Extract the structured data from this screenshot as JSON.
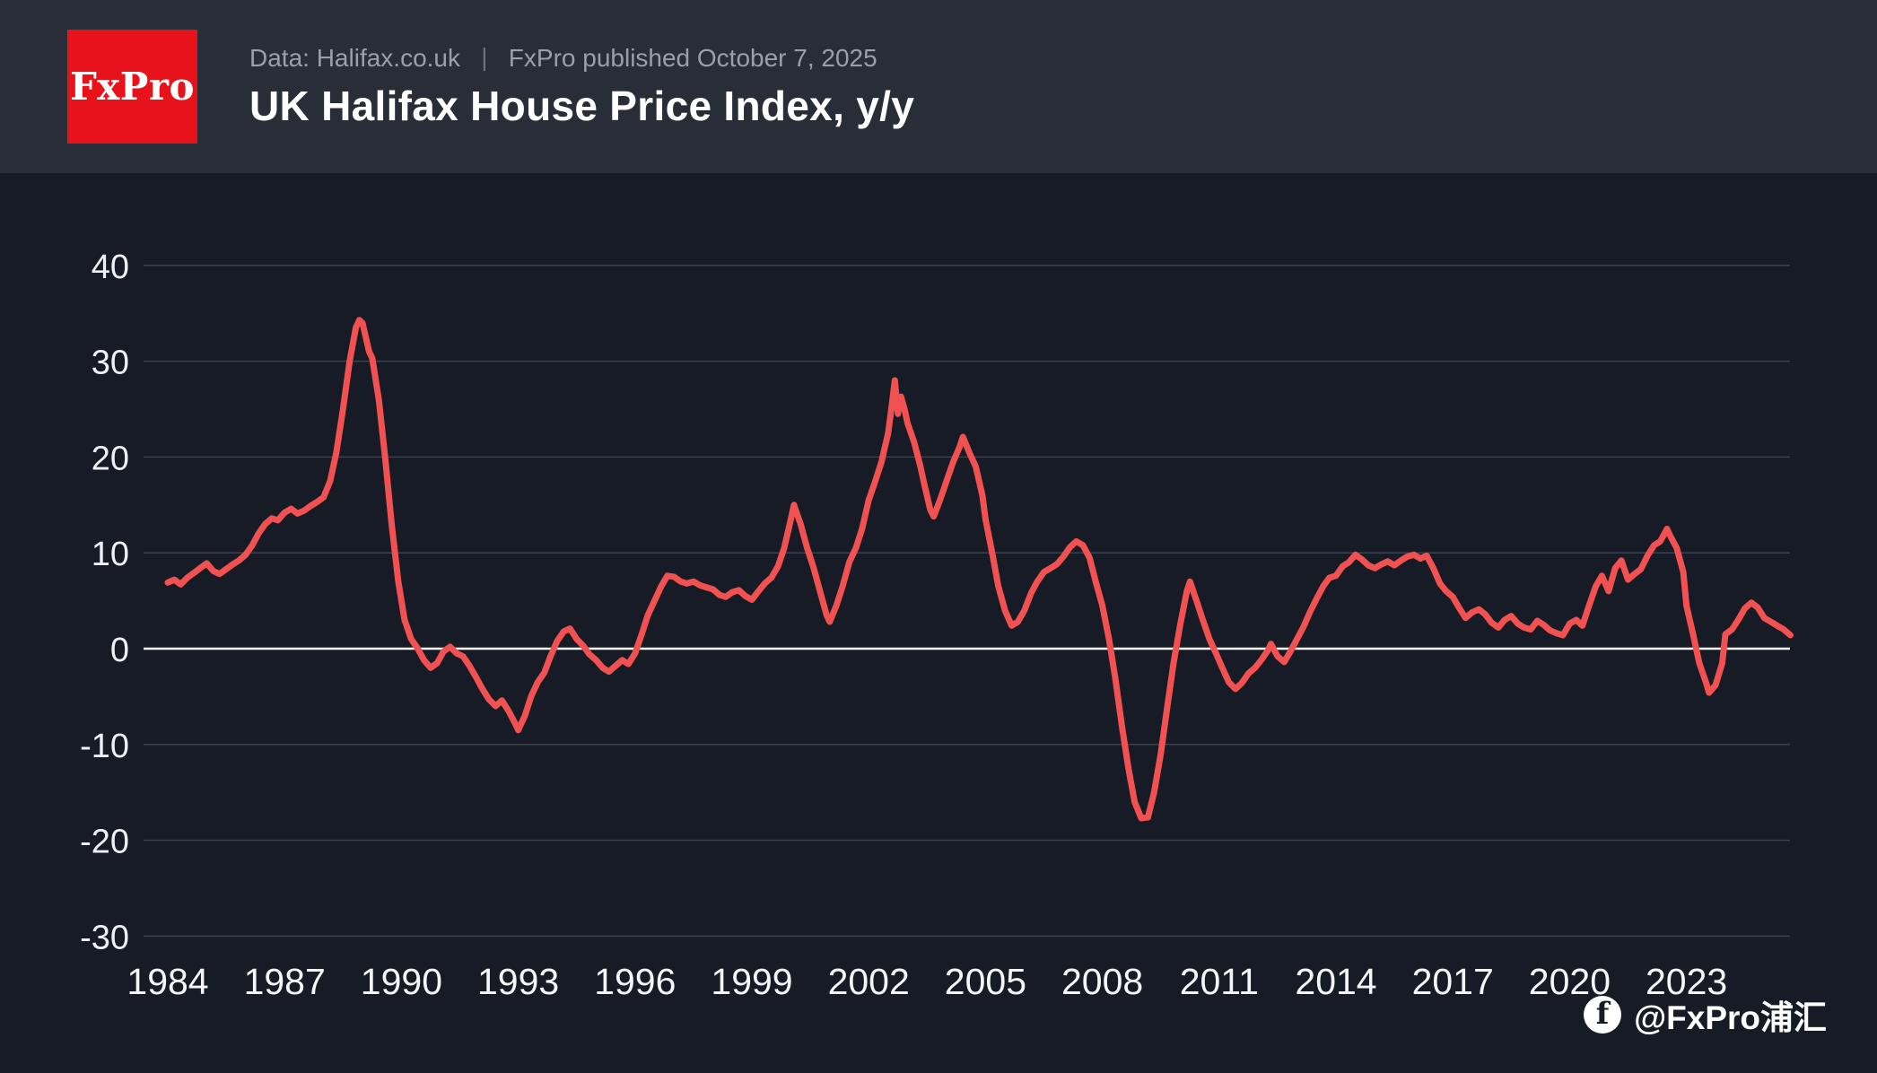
{
  "header": {
    "logo_text": "FxPro",
    "source": "Data: Halifax.co.uk",
    "published": "FxPro published October 7, 2025",
    "title": "UK Halifax House Price Index, y/y"
  },
  "watermark": {
    "icon": "facebook-icon",
    "icon_glyph": "f",
    "handle": "@FxPro浦汇"
  },
  "chart_data": {
    "type": "line",
    "title": "UK Halifax House Price Index, y/y",
    "xlabel": "",
    "ylabel": "",
    "xlim": [
      1984,
      2025.75
    ],
    "ylim": [
      -30,
      40
    ],
    "grid": "horizontal",
    "legend": "none",
    "x_ticks": [
      1984,
      1987,
      1990,
      1993,
      1996,
      1999,
      2002,
      2005,
      2008,
      2011,
      2014,
      2017,
      2020,
      2023
    ],
    "y_ticks": [
      40,
      30,
      20,
      10,
      0,
      -10,
      -20,
      -30
    ],
    "colors": {
      "line": "#f15151",
      "grid": "#3a4150",
      "zero_line": "#ffffff",
      "background": "#161b25",
      "header_background": "#282d38",
      "logo_red": "#e8121b",
      "tick_text": "#f5f6f8",
      "subtitle_text": "#98a0ab"
    },
    "series_name": "UK Halifax House Price Index y/y (%)",
    "points": [
      [
        1984.0,
        6.9
      ],
      [
        1984.17,
        7.2
      ],
      [
        1984.33,
        6.7
      ],
      [
        1984.5,
        7.4
      ],
      [
        1984.67,
        7.9
      ],
      [
        1984.83,
        8.4
      ],
      [
        1985.0,
        8.9
      ],
      [
        1985.17,
        8.1
      ],
      [
        1985.33,
        7.8
      ],
      [
        1985.5,
        8.3
      ],
      [
        1985.67,
        8.8
      ],
      [
        1985.83,
        9.2
      ],
      [
        1986.0,
        9.8
      ],
      [
        1986.17,
        10.8
      ],
      [
        1986.33,
        12.0
      ],
      [
        1986.5,
        13.0
      ],
      [
        1986.67,
        13.6
      ],
      [
        1986.83,
        13.4
      ],
      [
        1987.0,
        14.2
      ],
      [
        1987.17,
        14.6
      ],
      [
        1987.33,
        14.1
      ],
      [
        1987.5,
        14.4
      ],
      [
        1987.67,
        14.9
      ],
      [
        1987.83,
        15.3
      ],
      [
        1988.0,
        15.8
      ],
      [
        1988.17,
        17.5
      ],
      [
        1988.33,
        20.5
      ],
      [
        1988.5,
        25.0
      ],
      [
        1988.67,
        30.0
      ],
      [
        1988.83,
        33.5
      ],
      [
        1988.92,
        34.3
      ],
      [
        1989.0,
        34.0
      ],
      [
        1989.17,
        31.0
      ],
      [
        1989.25,
        30.3
      ],
      [
        1989.42,
        26.0
      ],
      [
        1989.58,
        20.0
      ],
      [
        1989.75,
        13.0
      ],
      [
        1989.92,
        7.0
      ],
      [
        1990.08,
        3.0
      ],
      [
        1990.25,
        1.0
      ],
      [
        1990.42,
        0.0
      ],
      [
        1990.58,
        -1.2
      ],
      [
        1990.75,
        -2.0
      ],
      [
        1990.92,
        -1.5
      ],
      [
        1991.08,
        -0.3
      ],
      [
        1991.25,
        0.2
      ],
      [
        1991.42,
        -0.5
      ],
      [
        1991.58,
        -0.8
      ],
      [
        1991.75,
        -1.8
      ],
      [
        1991.92,
        -3.0
      ],
      [
        1992.08,
        -4.2
      ],
      [
        1992.25,
        -5.3
      ],
      [
        1992.42,
        -6.0
      ],
      [
        1992.58,
        -5.4
      ],
      [
        1992.75,
        -6.5
      ],
      [
        1992.92,
        -7.8
      ],
      [
        1993.0,
        -8.5
      ],
      [
        1993.17,
        -7.0
      ],
      [
        1993.33,
        -5.0
      ],
      [
        1993.5,
        -3.5
      ],
      [
        1993.67,
        -2.5
      ],
      [
        1993.83,
        -0.8
      ],
      [
        1994.0,
        0.8
      ],
      [
        1994.17,
        1.8
      ],
      [
        1994.33,
        2.1
      ],
      [
        1994.5,
        1.0
      ],
      [
        1994.67,
        0.3
      ],
      [
        1994.83,
        -0.6
      ],
      [
        1995.0,
        -1.2
      ],
      [
        1995.17,
        -2.0
      ],
      [
        1995.33,
        -2.4
      ],
      [
        1995.5,
        -1.8
      ],
      [
        1995.67,
        -1.2
      ],
      [
        1995.83,
        -1.6
      ],
      [
        1996.0,
        -0.5
      ],
      [
        1996.17,
        1.5
      ],
      [
        1996.33,
        3.5
      ],
      [
        1996.5,
        5.0
      ],
      [
        1996.67,
        6.5
      ],
      [
        1996.83,
        7.6
      ],
      [
        1997.0,
        7.5
      ],
      [
        1997.17,
        7.0
      ],
      [
        1997.33,
        6.8
      ],
      [
        1997.5,
        7.0
      ],
      [
        1997.67,
        6.6
      ],
      [
        1997.83,
        6.4
      ],
      [
        1998.0,
        6.2
      ],
      [
        1998.17,
        5.6
      ],
      [
        1998.33,
        5.4
      ],
      [
        1998.5,
        5.9
      ],
      [
        1998.67,
        6.1
      ],
      [
        1998.83,
        5.5
      ],
      [
        1999.0,
        5.1
      ],
      [
        1999.17,
        6.0
      ],
      [
        1999.33,
        6.8
      ],
      [
        1999.5,
        7.4
      ],
      [
        1999.67,
        8.6
      ],
      [
        1999.83,
        10.5
      ],
      [
        2000.0,
        13.5
      ],
      [
        2000.08,
        15.0
      ],
      [
        2000.25,
        13.0
      ],
      [
        2000.42,
        10.5
      ],
      [
        2000.58,
        8.5
      ],
      [
        2000.75,
        6.0
      ],
      [
        2000.92,
        3.5
      ],
      [
        2001.0,
        2.8
      ],
      [
        2001.17,
        4.5
      ],
      [
        2001.33,
        6.5
      ],
      [
        2001.5,
        9.0
      ],
      [
        2001.67,
        10.5
      ],
      [
        2001.83,
        12.5
      ],
      [
        2002.0,
        15.5
      ],
      [
        2002.17,
        17.5
      ],
      [
        2002.33,
        19.5
      ],
      [
        2002.5,
        22.5
      ],
      [
        2002.58,
        25.0
      ],
      [
        2002.67,
        28.0
      ],
      [
        2002.75,
        24.5
      ],
      [
        2002.83,
        26.3
      ],
      [
        2002.92,
        25.0
      ],
      [
        2003.0,
        23.5
      ],
      [
        2003.17,
        21.5
      ],
      [
        2003.33,
        19.0
      ],
      [
        2003.42,
        17.3
      ],
      [
        2003.58,
        14.5
      ],
      [
        2003.67,
        13.8
      ],
      [
        2003.83,
        15.5
      ],
      [
        2004.0,
        17.5
      ],
      [
        2004.17,
        19.5
      ],
      [
        2004.33,
        21.0
      ],
      [
        2004.42,
        22.1
      ],
      [
        2004.58,
        20.5
      ],
      [
        2004.75,
        19.0
      ],
      [
        2004.92,
        16.0
      ],
      [
        2005.0,
        13.5
      ],
      [
        2005.17,
        10.0
      ],
      [
        2005.33,
        6.5
      ],
      [
        2005.5,
        4.0
      ],
      [
        2005.67,
        2.4
      ],
      [
        2005.83,
        2.8
      ],
      [
        2006.0,
        4.0
      ],
      [
        2006.17,
        5.8
      ],
      [
        2006.33,
        7.0
      ],
      [
        2006.5,
        8.0
      ],
      [
        2006.67,
        8.4
      ],
      [
        2006.83,
        8.8
      ],
      [
        2007.0,
        9.6
      ],
      [
        2007.17,
        10.6
      ],
      [
        2007.33,
        11.2
      ],
      [
        2007.5,
        10.8
      ],
      [
        2007.67,
        9.5
      ],
      [
        2007.83,
        7.0
      ],
      [
        2008.0,
        4.5
      ],
      [
        2008.17,
        1.0
      ],
      [
        2008.33,
        -3.0
      ],
      [
        2008.5,
        -8.0
      ],
      [
        2008.67,
        -12.5
      ],
      [
        2008.83,
        -16.0
      ],
      [
        2009.0,
        -17.7
      ],
      [
        2009.17,
        -17.6
      ],
      [
        2009.33,
        -15.0
      ],
      [
        2009.5,
        -11.0
      ],
      [
        2009.67,
        -6.0
      ],
      [
        2009.83,
        -1.5
      ],
      [
        2010.0,
        2.5
      ],
      [
        2010.17,
        6.0
      ],
      [
        2010.25,
        7.0
      ],
      [
        2010.42,
        5.0
      ],
      [
        2010.58,
        3.0
      ],
      [
        2010.75,
        1.0
      ],
      [
        2010.92,
        -0.5
      ],
      [
        2011.08,
        -2.0
      ],
      [
        2011.25,
        -3.5
      ],
      [
        2011.42,
        -4.2
      ],
      [
        2011.58,
        -3.6
      ],
      [
        2011.75,
        -2.6
      ],
      [
        2011.92,
        -2.0
      ],
      [
        2012.08,
        -1.2
      ],
      [
        2012.25,
        -0.2
      ],
      [
        2012.33,
        0.5
      ],
      [
        2012.5,
        -0.8
      ],
      [
        2012.67,
        -1.4
      ],
      [
        2012.83,
        -0.3
      ],
      [
        2013.0,
        1.0
      ],
      [
        2013.17,
        2.3
      ],
      [
        2013.33,
        3.8
      ],
      [
        2013.5,
        5.2
      ],
      [
        2013.67,
        6.5
      ],
      [
        2013.83,
        7.4
      ],
      [
        2014.0,
        7.6
      ],
      [
        2014.17,
        8.6
      ],
      [
        2014.33,
        9.0
      ],
      [
        2014.5,
        9.8
      ],
      [
        2014.67,
        9.3
      ],
      [
        2014.83,
        8.7
      ],
      [
        2015.0,
        8.4
      ],
      [
        2015.17,
        8.8
      ],
      [
        2015.33,
        9.1
      ],
      [
        2015.5,
        8.7
      ],
      [
        2015.67,
        9.2
      ],
      [
        2015.83,
        9.6
      ],
      [
        2016.0,
        9.8
      ],
      [
        2016.17,
        9.4
      ],
      [
        2016.33,
        9.7
      ],
      [
        2016.5,
        8.4
      ],
      [
        2016.67,
        6.8
      ],
      [
        2016.83,
        6.0
      ],
      [
        2017.0,
        5.4
      ],
      [
        2017.17,
        4.2
      ],
      [
        2017.33,
        3.2
      ],
      [
        2017.5,
        3.8
      ],
      [
        2017.67,
        4.1
      ],
      [
        2017.83,
        3.6
      ],
      [
        2018.0,
        2.7
      ],
      [
        2018.17,
        2.2
      ],
      [
        2018.33,
        3.0
      ],
      [
        2018.5,
        3.4
      ],
      [
        2018.67,
        2.6
      ],
      [
        2018.83,
        2.2
      ],
      [
        2019.0,
        2.0
      ],
      [
        2019.17,
        2.9
      ],
      [
        2019.33,
        2.5
      ],
      [
        2019.5,
        1.9
      ],
      [
        2019.67,
        1.6
      ],
      [
        2019.83,
        1.4
      ],
      [
        2020.0,
        2.6
      ],
      [
        2020.17,
        3.0
      ],
      [
        2020.33,
        2.4
      ],
      [
        2020.5,
        4.5
      ],
      [
        2020.67,
        6.5
      ],
      [
        2020.83,
        7.6
      ],
      [
        2021.0,
        6.0
      ],
      [
        2021.17,
        8.4
      ],
      [
        2021.33,
        9.2
      ],
      [
        2021.5,
        7.2
      ],
      [
        2021.67,
        7.8
      ],
      [
        2021.83,
        8.3
      ],
      [
        2022.0,
        9.7
      ],
      [
        2022.17,
        10.8
      ],
      [
        2022.33,
        11.2
      ],
      [
        2022.5,
        12.5
      ],
      [
        2022.58,
        11.8
      ],
      [
        2022.75,
        10.5
      ],
      [
        2022.92,
        8.0
      ],
      [
        2023.0,
        4.5
      ],
      [
        2023.17,
        1.5
      ],
      [
        2023.33,
        -1.5
      ],
      [
        2023.5,
        -3.5
      ],
      [
        2023.58,
        -4.6
      ],
      [
        2023.75,
        -3.8
      ],
      [
        2023.92,
        -1.5
      ],
      [
        2024.0,
        1.5
      ],
      [
        2024.17,
        2.0
      ],
      [
        2024.33,
        3.0
      ],
      [
        2024.5,
        4.2
      ],
      [
        2024.67,
        4.8
      ],
      [
        2024.83,
        4.3
      ],
      [
        2025.0,
        3.2
      ],
      [
        2025.17,
        2.8
      ],
      [
        2025.33,
        2.4
      ],
      [
        2025.5,
        2.0
      ],
      [
        2025.67,
        1.4
      ]
    ]
  }
}
